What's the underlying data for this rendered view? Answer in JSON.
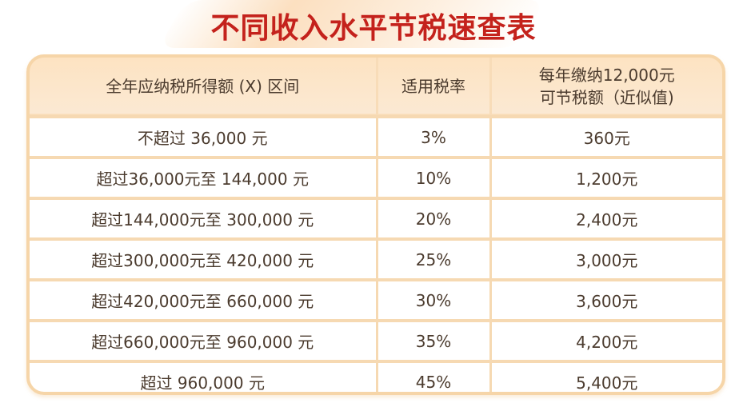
{
  "title": "不同收入水平节税速查表",
  "table": {
    "headers": [
      "全年应纳税所得额 (X) 区间",
      "适用税率",
      "每年缴纳12,000元\n可节税额（近似值)"
    ],
    "header_line1": "每年缴纳12,000元",
    "header_line2": "可节税额（近似值)",
    "rows": [
      [
        "不超过 36,000 元",
        "3%",
        "360元"
      ],
      [
        "超过36,000元至 144,000 元",
        "10%",
        "1,200元"
      ],
      [
        "超过144,000元至 300,000 元",
        "20%",
        "2,400元"
      ],
      [
        "超过300,000元至 420,000 元",
        "25%",
        "3,000元"
      ],
      [
        "超过420,000元至 660,000 元",
        "30%",
        "3,600元"
      ],
      [
        "超过660,000元至 960,000 元",
        "35%",
        "4,200元"
      ],
      [
        "超过 960,000 元",
        "45%",
        "5,400元"
      ]
    ]
  },
  "colors": {
    "title": "#c4221c",
    "border": "#f6d5a8",
    "header_bg": "#fde3c2",
    "text": "#4b3b2e"
  }
}
